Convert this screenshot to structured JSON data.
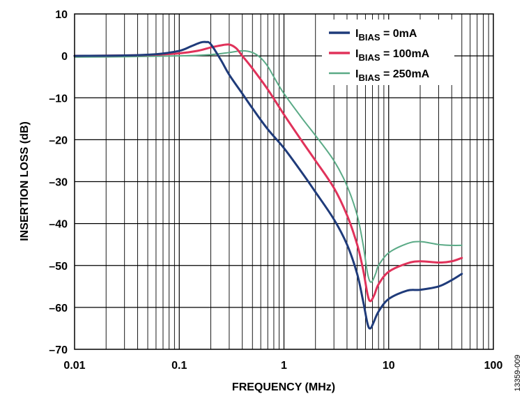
{
  "chart_data": {
    "type": "line",
    "title": "",
    "xlabel": "FREQUENCY (MHz)",
    "ylabel": "INSERTION LOSS (dB)",
    "xscale": "log",
    "xlim": [
      0.01,
      100
    ],
    "ylim": [
      -70,
      10
    ],
    "grid": true,
    "legend_position": "top-right",
    "x_tick_labels": [
      "0.01",
      "0.1",
      "1",
      "10",
      "100"
    ],
    "x_tick_values": [
      0.01,
      0.1,
      1,
      10,
      100
    ],
    "y_tick_labels": [
      "10",
      "0",
      "–10",
      "–20",
      "–30",
      "–40",
      "–50",
      "–60",
      "–70"
    ],
    "y_tick_values": [
      10,
      0,
      -10,
      -20,
      -30,
      -40,
      -50,
      -60,
      -70
    ],
    "figure_code": "13359-009",
    "series": [
      {
        "legend_main": "I",
        "legend_sub": "BIAS",
        "legend_rest": " = 0mA",
        "color": "#1f3b7a",
        "stroke_width": 3,
        "points": [
          [
            0.01,
            0
          ],
          [
            0.03,
            0.1
          ],
          [
            0.06,
            0.4
          ],
          [
            0.1,
            1.2
          ],
          [
            0.13,
            2.3
          ],
          [
            0.16,
            3.2
          ],
          [
            0.18,
            3.3
          ],
          [
            0.2,
            2.8
          ],
          [
            0.25,
            -1
          ],
          [
            0.3,
            -4.5
          ],
          [
            0.4,
            -9
          ],
          [
            0.5,
            -12.5
          ],
          [
            0.7,
            -17.5
          ],
          [
            1,
            -22
          ],
          [
            1.5,
            -28
          ],
          [
            2,
            -32.5
          ],
          [
            3,
            -39
          ],
          [
            4,
            -45
          ],
          [
            5,
            -52
          ],
          [
            5.7,
            -58.5
          ],
          [
            6.3,
            -64
          ],
          [
            6.7,
            -65
          ],
          [
            7.2,
            -63.5
          ],
          [
            8,
            -61
          ],
          [
            10,
            -58
          ],
          [
            15,
            -56
          ],
          [
            20,
            -55.8
          ],
          [
            30,
            -55
          ],
          [
            40,
            -53.5
          ],
          [
            50,
            -52
          ]
        ]
      },
      {
        "legend_main": "I",
        "legend_sub": "BIAS",
        "legend_rest": " = 100mA",
        "color": "#e0325a",
        "stroke_width": 3,
        "points": [
          [
            0.01,
            0
          ],
          [
            0.03,
            0.1
          ],
          [
            0.06,
            0.3
          ],
          [
            0.1,
            0.6
          ],
          [
            0.15,
            1.2
          ],
          [
            0.2,
            2
          ],
          [
            0.25,
            2.5
          ],
          [
            0.3,
            2.7
          ],
          [
            0.35,
            1.8
          ],
          [
            0.4,
            0
          ],
          [
            0.5,
            -3
          ],
          [
            0.7,
            -8
          ],
          [
            1,
            -14
          ],
          [
            1.5,
            -20.5
          ],
          [
            2,
            -25
          ],
          [
            3,
            -31.5
          ],
          [
            4,
            -38
          ],
          [
            5,
            -45
          ],
          [
            5.7,
            -51
          ],
          [
            6.3,
            -57
          ],
          [
            6.7,
            -58.5
          ],
          [
            7.3,
            -57
          ],
          [
            8,
            -54.5
          ],
          [
            10,
            -51.5
          ],
          [
            15,
            -49.5
          ],
          [
            20,
            -49
          ],
          [
            30,
            -49.3
          ],
          [
            40,
            -49
          ],
          [
            50,
            -48.2
          ]
        ]
      },
      {
        "legend_main": "I",
        "legend_sub": "BIAS",
        "legend_rest": " = 250mA",
        "color": "#5aaa86",
        "stroke_width": 2,
        "points": [
          [
            0.01,
            -0.3
          ],
          [
            0.03,
            -0.2
          ],
          [
            0.1,
            0
          ],
          [
            0.2,
            0.3
          ],
          [
            0.3,
            0.8
          ],
          [
            0.4,
            1.2
          ],
          [
            0.5,
            0.8
          ],
          [
            0.6,
            -0.5
          ],
          [
            0.7,
            -2.5
          ],
          [
            0.8,
            -5
          ],
          [
            1,
            -9
          ],
          [
            1.5,
            -15
          ],
          [
            2,
            -19
          ],
          [
            3,
            -25
          ],
          [
            4,
            -31
          ],
          [
            5,
            -38
          ],
          [
            5.7,
            -45
          ],
          [
            6.3,
            -52
          ],
          [
            6.8,
            -54
          ],
          [
            7.5,
            -52
          ],
          [
            8,
            -50
          ],
          [
            10,
            -47
          ],
          [
            15,
            -44.8
          ],
          [
            20,
            -44.3
          ],
          [
            30,
            -45
          ],
          [
            40,
            -45.2
          ],
          [
            50,
            -45.2
          ]
        ]
      }
    ]
  }
}
